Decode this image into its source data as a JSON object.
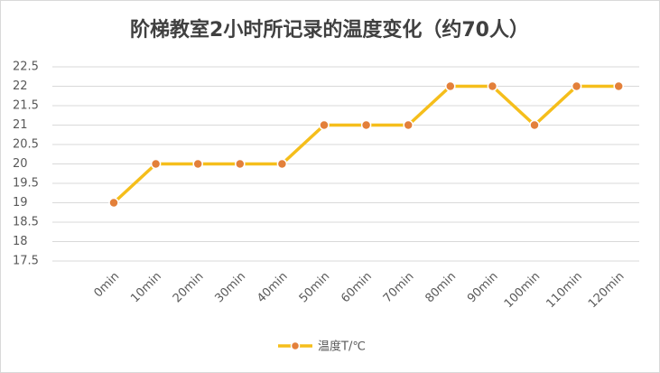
{
  "chart_data": {
    "type": "line",
    "title": "阶梯教室2小时所记录的温度变化（约70人）",
    "categories": [
      "0min",
      "10min",
      "20min",
      "30min",
      "40min",
      "50min",
      "60min",
      "70min",
      "80min",
      "90min",
      "100min",
      "110min",
      "120min"
    ],
    "series": [
      {
        "name": "温度T/℃",
        "color": "#f5be1b",
        "marker_color": "#e3803a",
        "values": [
          19,
          20,
          20,
          20,
          20,
          21,
          21,
          21,
          22,
          22,
          21,
          22,
          22
        ]
      }
    ],
    "ylim": [
      17.5,
      22.5
    ],
    "yticks": [
      17.5,
      18,
      18.5,
      19,
      19.5,
      20,
      20.5,
      21,
      21.5,
      22,
      22.5
    ],
    "grid": true,
    "legend": "bottom"
  }
}
